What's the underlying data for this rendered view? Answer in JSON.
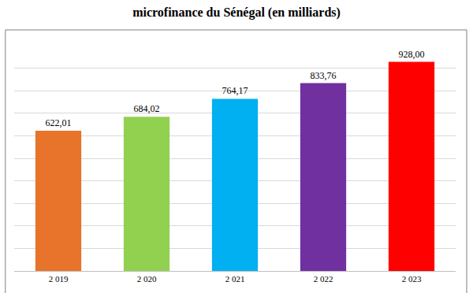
{
  "chart_data": {
    "type": "bar",
    "title": "microfinance du Sénégal (en milliards)",
    "categories": [
      "2 019",
      "2 020",
      "2 021",
      "2 022",
      "2 023"
    ],
    "values": [
      622.01,
      684.02,
      764.17,
      833.76,
      928.0
    ],
    "value_labels": [
      "622,01",
      "684,02",
      "764,17",
      "833,76",
      "928,00"
    ],
    "colors": [
      "#e8732a",
      "#92d050",
      "#00b0f0",
      "#7030a0",
      "#ff0000"
    ],
    "ylim": [
      0,
      1000
    ],
    "yticks": [
      0,
      100,
      200,
      300,
      400,
      500,
      600,
      700,
      800,
      900,
      1000
    ],
    "grid": true,
    "data_labels": true,
    "tick_labels": "x"
  }
}
